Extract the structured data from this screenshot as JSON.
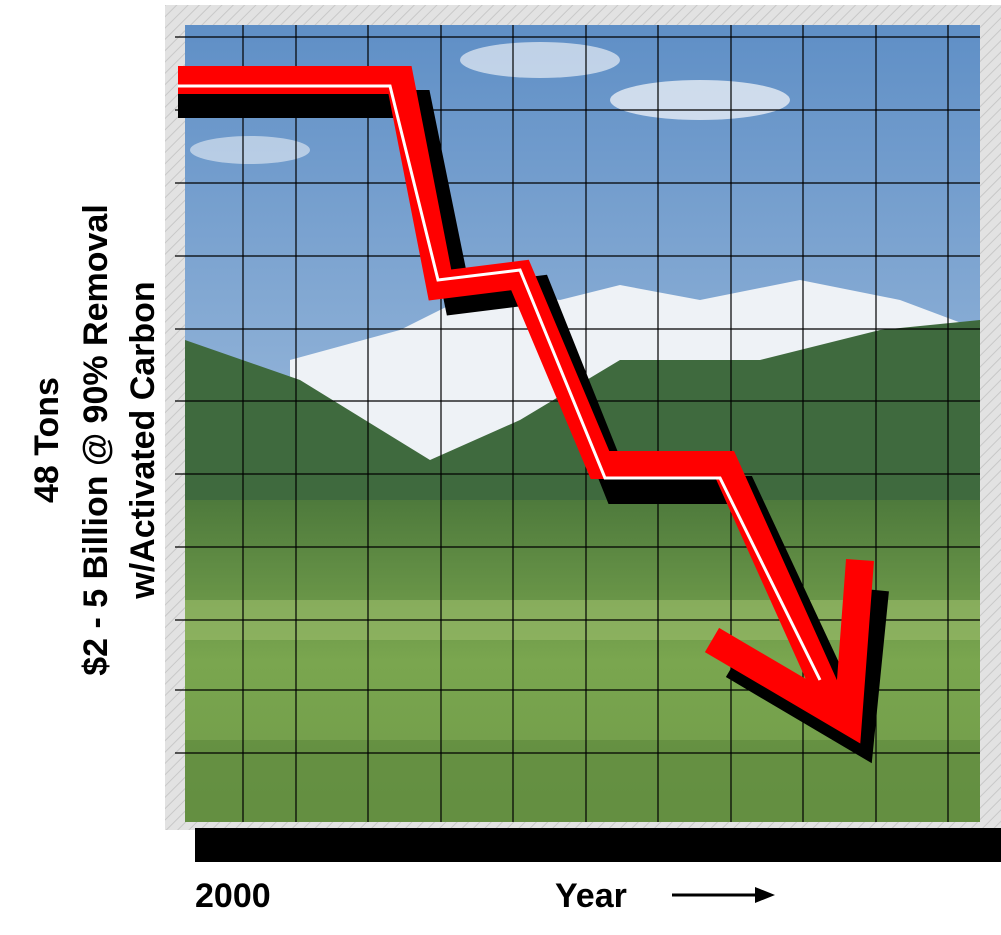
{
  "axis_label": {
    "lines": [
      "48 Tons",
      "$2 - 5 Billion @ 90% Removal",
      "w/Activated Carbon"
    ]
  },
  "x_start_label": "2000",
  "x_axis_label": "Year"
}
